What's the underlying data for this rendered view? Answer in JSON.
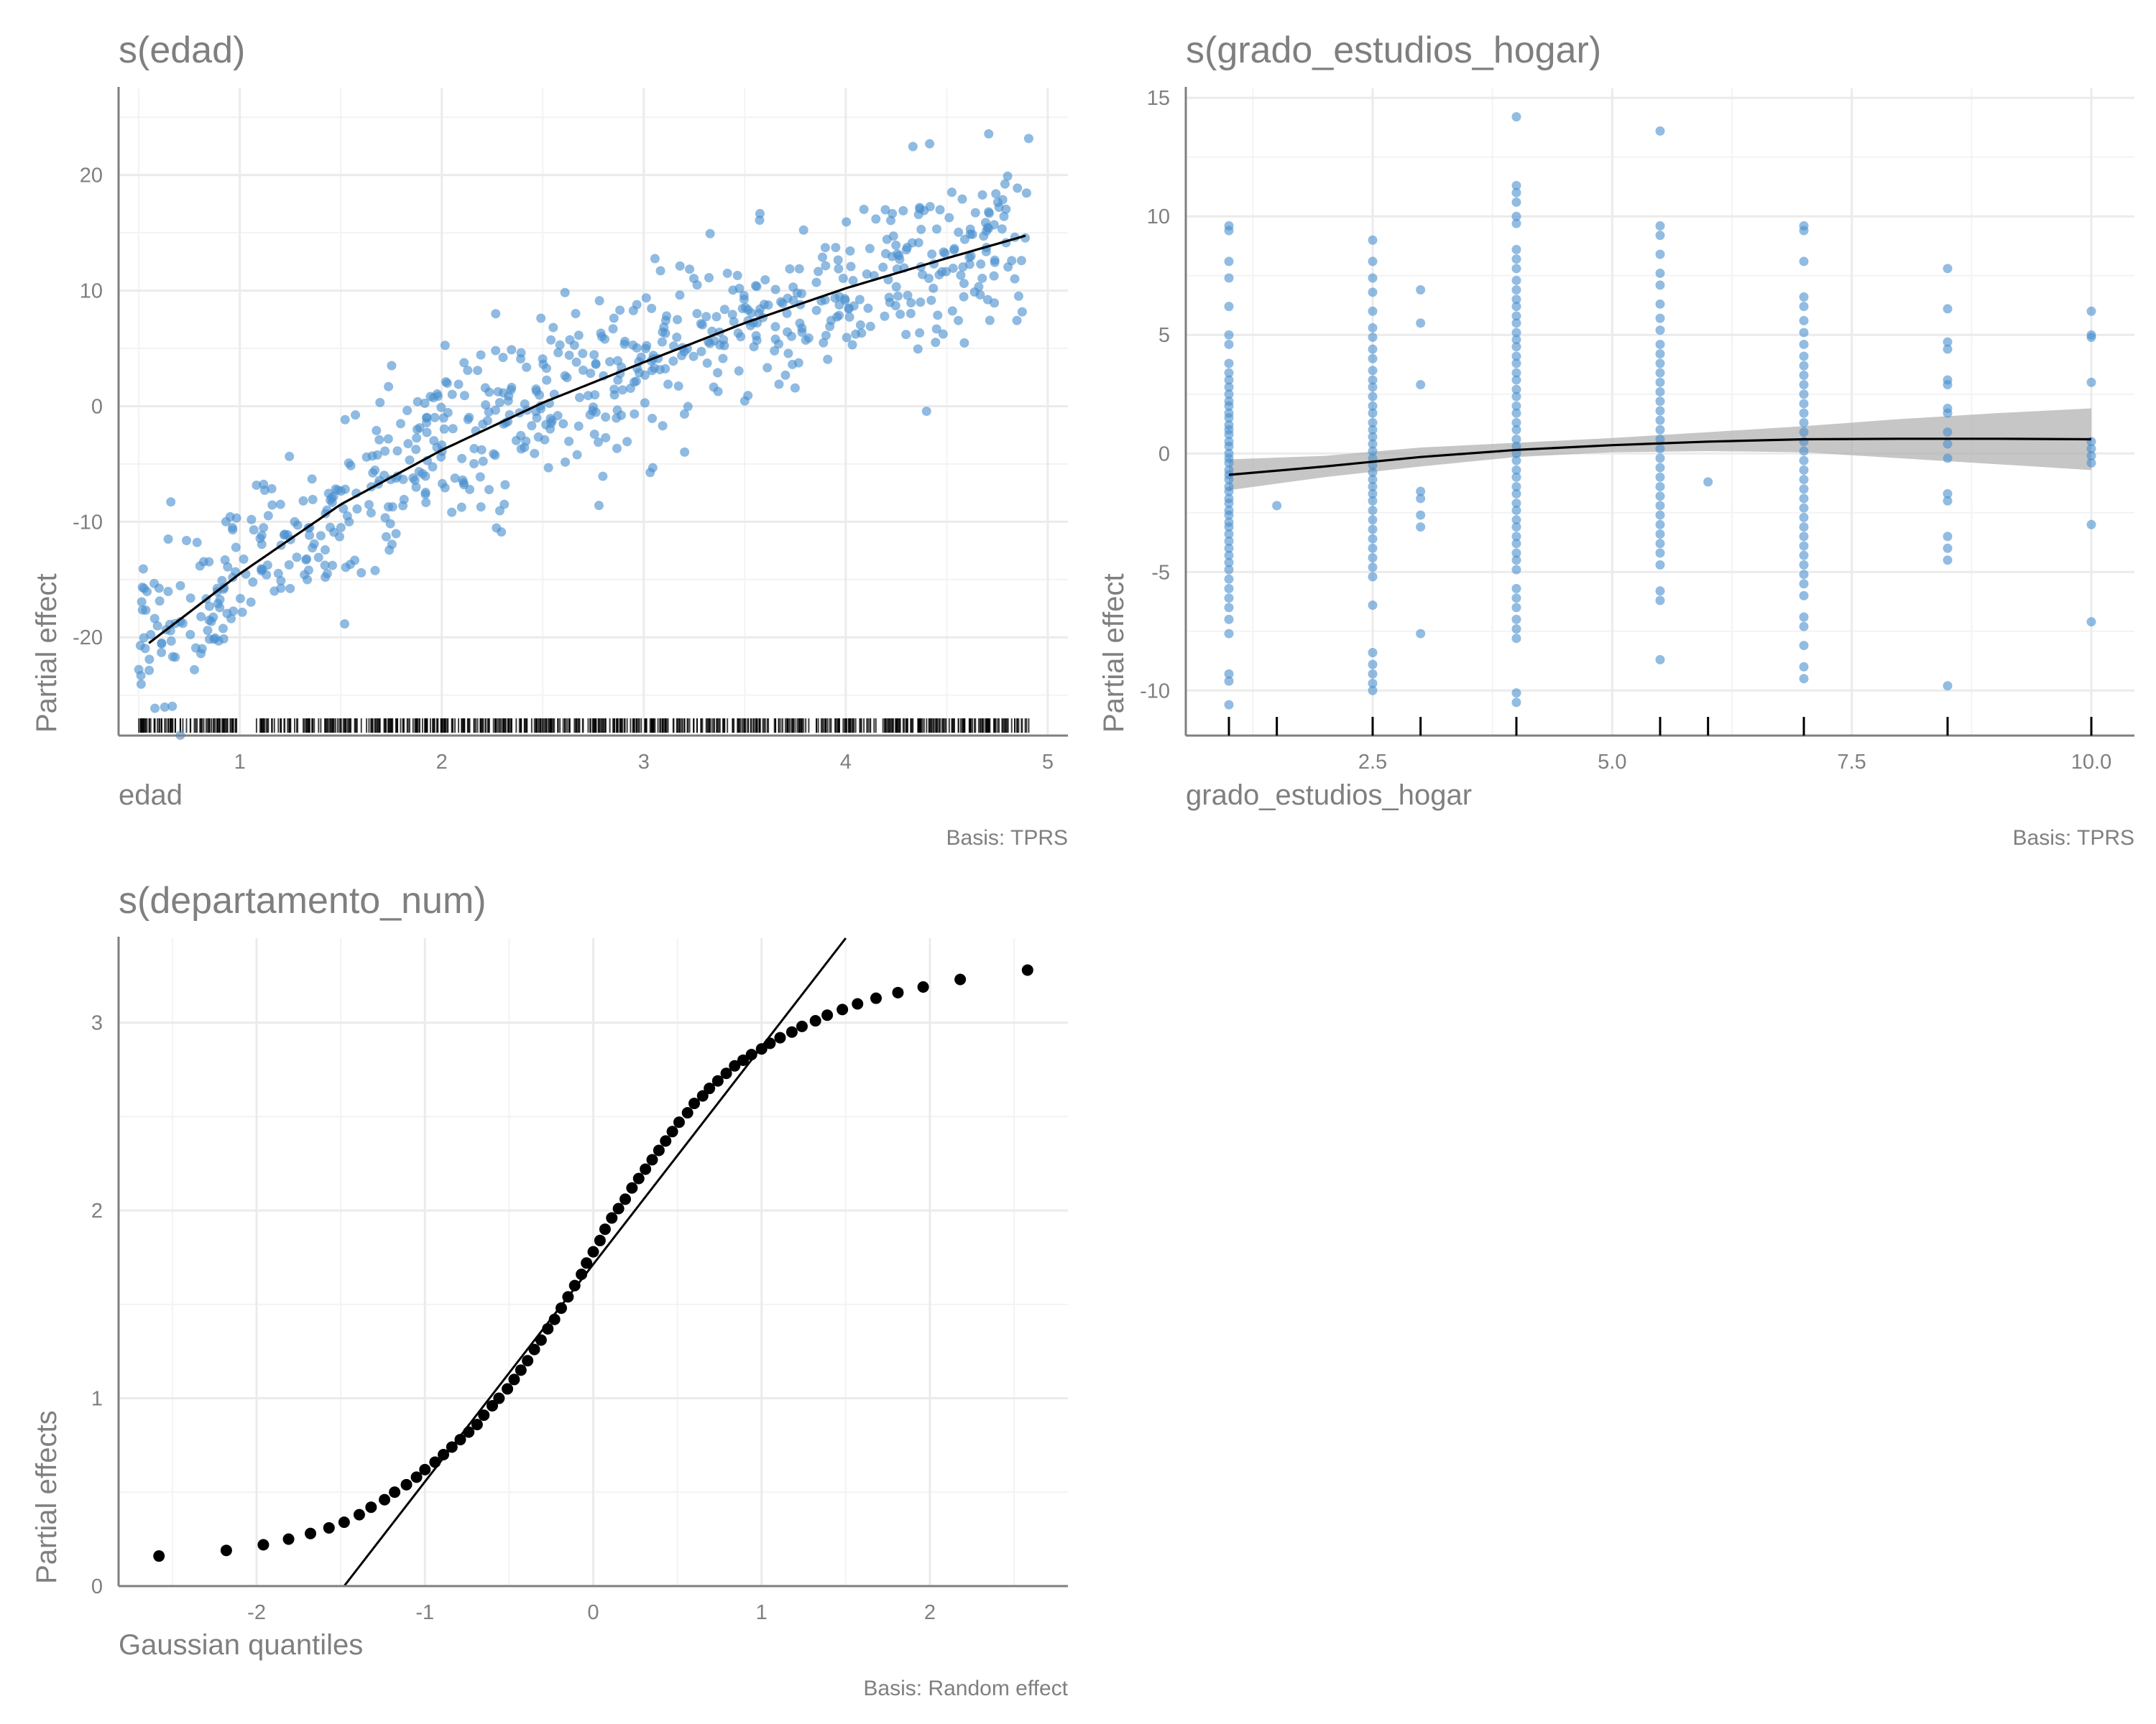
{
  "colors": {
    "points": "#4a8fce",
    "smooth": "#000000",
    "band": "#b3b3b3",
    "grid": "#ebebeb",
    "axis": "#7f7f7f",
    "text": "#7f7f7f"
  },
  "chart_data": [
    {
      "type": "scatter",
      "title": "s(edad)",
      "xlabel": "edad",
      "ylabel": "Partial effect",
      "caption": "Basis: TPRS",
      "xlim": [
        0.4,
        5.1
      ],
      "ylim": [
        -28.5,
        27.5
      ],
      "xticks": [
        1,
        2,
        3,
        4,
        5
      ],
      "yticks": [
        -20,
        -10,
        0,
        10,
        20
      ],
      "rug": true,
      "smooth": {
        "x": [
          0.55,
          1.0,
          1.5,
          2.0,
          2.5,
          3.0,
          3.5,
          4.0,
          4.5,
          4.9
        ],
        "y": [
          -20.5,
          -14.5,
          -8.5,
          -3.8,
          0.3,
          3.8,
          7.2,
          10.2,
          12.8,
          14.8
        ]
      },
      "points": {
        "x_range": [
          0.5,
          4.92
        ],
        "n": 720,
        "residual_sd": 3.8
      }
    },
    {
      "type": "scatter",
      "title": "s(grado_estudios_hogar)",
      "xlabel": "grado_estudios_hogar",
      "ylabel": "Partial effect",
      "caption": "Basis: TPRS",
      "xlim": [
        0.55,
        10.45
      ],
      "ylim": [
        -11.9,
        15.4
      ],
      "xticks": [
        2.5,
        5.0,
        7.5,
        10.0
      ],
      "xtick_labels": [
        "2.5",
        "5.0",
        "7.5",
        "10.0"
      ],
      "yticks": [
        -10,
        -5,
        0,
        5,
        10,
        15
      ],
      "rug_x": [
        1,
        1.5,
        2.5,
        3,
        4,
        5.5,
        6,
        7,
        8.5,
        10
      ],
      "smooth": {
        "x": [
          1,
          2,
          3,
          4,
          5,
          6,
          7,
          8,
          9,
          10
        ],
        "y": [
          -0.9,
          -0.55,
          -0.15,
          0.15,
          0.35,
          0.5,
          0.6,
          0.62,
          0.62,
          0.6
        ],
        "lower": [
          -1.55,
          -1.0,
          -0.55,
          -0.15,
          0.05,
          0.1,
          0.05,
          -0.2,
          -0.45,
          -0.7
        ],
        "upper": [
          -0.25,
          -0.1,
          0.25,
          0.45,
          0.65,
          0.9,
          1.15,
          1.45,
          1.7,
          1.9
        ]
      },
      "points": [
        {
          "x": 1,
          "values": [
            9.6,
            9.4,
            8.1,
            7.4,
            6.2,
            5.0,
            4.6,
            3.8,
            3.4,
            3.1,
            2.8,
            2.5,
            2.2,
            2.0,
            1.7,
            1.5,
            1.2,
            1.0,
            0.8,
            0.5,
            0.3,
            0.0,
            -0.2,
            -0.4,
            -0.7,
            -0.9,
            -1.1,
            -1.4,
            -1.6,
            -1.9,
            -2.1,
            -2.4,
            -2.6,
            -2.9,
            -3.1,
            -3.4,
            -3.7,
            -4.0,
            -4.3,
            -4.6,
            -4.9,
            -5.3,
            -5.7,
            -6.1,
            -6.5,
            -7.0,
            -7.6,
            -9.3,
            -9.6,
            -10.6
          ]
        },
        {
          "x": 1.5,
          "values": [
            -2.2
          ]
        },
        {
          "x": 2.5,
          "values": [
            9.0,
            8.1,
            7.4,
            6.8,
            6.0,
            5.3,
            4.9,
            4.4,
            4.0,
            3.5,
            3.1,
            2.8,
            2.4,
            2.0,
            1.7,
            1.3,
            1.0,
            0.7,
            0.4,
            0.1,
            -0.2,
            -0.5,
            -0.8,
            -1.1,
            -1.4,
            -1.7,
            -2.0,
            -2.4,
            -2.8,
            -3.2,
            -3.6,
            -4.0,
            -4.4,
            -4.8,
            -5.2,
            -6.4,
            -8.4,
            -8.9,
            -9.3,
            -9.7,
            -10.0
          ]
        },
        {
          "x": 3,
          "values": [
            6.9,
            5.5,
            2.9,
            -1.6,
            -1.9,
            -2.6,
            -3.1,
            -7.6
          ]
        },
        {
          "x": 4,
          "values": [
            14.2,
            11.3,
            11.0,
            10.6,
            10.0,
            9.7,
            8.6,
            8.2,
            7.8,
            7.3,
            6.9,
            6.5,
            6.2,
            5.8,
            5.5,
            5.1,
            4.8,
            4.5,
            4.1,
            3.8,
            3.4,
            3.1,
            2.7,
            2.4,
            2.0,
            1.7,
            1.3,
            1.0,
            0.6,
            0.3,
            0.0,
            -0.3,
            -0.7,
            -1.0,
            -1.4,
            -1.7,
            -2.1,
            -2.4,
            -2.8,
            -3.1,
            -3.5,
            -3.8,
            -4.2,
            -4.5,
            -4.9,
            -5.7,
            -6.1,
            -6.5,
            -7.0,
            -7.4,
            -7.8,
            -10.1,
            -10.5
          ]
        },
        {
          "x": 5.5,
          "values": [
            13.6,
            9.6,
            9.2,
            8.4,
            7.6,
            7.1,
            6.3,
            5.7,
            5.2,
            4.6,
            4.2,
            3.8,
            3.4,
            3.0,
            2.6,
            2.2,
            1.8,
            1.4,
            1.0,
            0.6,
            0.2,
            -0.2,
            -0.6,
            -1.0,
            -1.4,
            -1.8,
            -2.2,
            -2.6,
            -3.0,
            -3.4,
            -3.8,
            -4.2,
            -4.7,
            -5.8,
            -6.2,
            -8.7
          ]
        },
        {
          "x": 6,
          "values": [
            -1.2
          ]
        },
        {
          "x": 7,
          "values": [
            9.6,
            9.4,
            8.1,
            6.6,
            6.2,
            5.6,
            5.1,
            4.6,
            4.1,
            3.7,
            3.3,
            2.9,
            2.5,
            2.1,
            1.7,
            1.3,
            0.9,
            0.5,
            0.1,
            -0.3,
            -0.7,
            -1.1,
            -1.5,
            -1.9,
            -2.3,
            -2.7,
            -3.1,
            -3.5,
            -3.9,
            -4.3,
            -4.7,
            -5.1,
            -5.5,
            -6.0,
            -6.9,
            -7.3,
            -8.1,
            -9.0,
            -9.5
          ]
        },
        {
          "x": 8.5,
          "values": [
            7.8,
            6.1,
            4.7,
            4.4,
            3.1,
            2.9,
            1.9,
            1.7,
            0.9,
            0.4,
            -0.2,
            -1.7,
            -2.0,
            -3.5,
            -4.0,
            -4.5,
            -9.8
          ]
        },
        {
          "x": 10,
          "values": [
            6.0,
            5.0,
            4.9,
            3.0,
            0.5,
            0.2,
            -0.1,
            -0.4,
            -3.0,
            -7.1
          ]
        }
      ]
    },
    {
      "type": "scatter",
      "title": "s(departamento_num)",
      "xlabel": "Gaussian quantiles",
      "ylabel": "Partial effects",
      "caption": "Basis: Random effect",
      "xlim": [
        -2.82,
        2.82
      ],
      "ylim": [
        0.0,
        3.45
      ],
      "xticks": [
        -2,
        -1,
        0,
        1,
        2
      ],
      "yticks": [
        0,
        1,
        2,
        3
      ],
      "reference_line": {
        "x1": -1.48,
        "y1": 0.0,
        "x2": 1.5,
        "y2": 3.45
      },
      "points": [
        {
          "x": -2.58,
          "y": 0.16
        },
        {
          "x": -2.18,
          "y": 0.19
        },
        {
          "x": -1.96,
          "y": 0.22
        },
        {
          "x": -1.81,
          "y": 0.25
        },
        {
          "x": -1.68,
          "y": 0.28
        },
        {
          "x": -1.57,
          "y": 0.31
        },
        {
          "x": -1.48,
          "y": 0.34
        },
        {
          "x": -1.39,
          "y": 0.38
        },
        {
          "x": -1.32,
          "y": 0.42
        },
        {
          "x": -1.24,
          "y": 0.46
        },
        {
          "x": -1.18,
          "y": 0.5
        },
        {
          "x": -1.11,
          "y": 0.54
        },
        {
          "x": -1.05,
          "y": 0.58
        },
        {
          "x": -1.0,
          "y": 0.62
        },
        {
          "x": -0.94,
          "y": 0.66
        },
        {
          "x": -0.89,
          "y": 0.7
        },
        {
          "x": -0.84,
          "y": 0.74
        },
        {
          "x": -0.79,
          "y": 0.78
        },
        {
          "x": -0.74,
          "y": 0.82
        },
        {
          "x": -0.69,
          "y": 0.86
        },
        {
          "x": -0.65,
          "y": 0.91
        },
        {
          "x": -0.6,
          "y": 0.96
        },
        {
          "x": -0.56,
          "y": 1.0
        },
        {
          "x": -0.51,
          "y": 1.05
        },
        {
          "x": -0.47,
          "y": 1.1
        },
        {
          "x": -0.43,
          "y": 1.15
        },
        {
          "x": -0.39,
          "y": 1.2
        },
        {
          "x": -0.35,
          "y": 1.26
        },
        {
          "x": -0.31,
          "y": 1.31
        },
        {
          "x": -0.27,
          "y": 1.37
        },
        {
          "x": -0.23,
          "y": 1.42
        },
        {
          "x": -0.19,
          "y": 1.48
        },
        {
          "x": -0.15,
          "y": 1.54
        },
        {
          "x": -0.11,
          "y": 1.6
        },
        {
          "x": -0.07,
          "y": 1.66
        },
        {
          "x": -0.04,
          "y": 1.72
        },
        {
          "x": 0.0,
          "y": 1.78
        },
        {
          "x": 0.04,
          "y": 1.84
        },
        {
          "x": 0.07,
          "y": 1.9
        },
        {
          "x": 0.11,
          "y": 1.96
        },
        {
          "x": 0.15,
          "y": 2.01
        },
        {
          "x": 0.19,
          "y": 2.06
        },
        {
          "x": 0.23,
          "y": 2.12
        },
        {
          "x": 0.27,
          "y": 2.17
        },
        {
          "x": 0.31,
          "y": 2.22
        },
        {
          "x": 0.35,
          "y": 2.27
        },
        {
          "x": 0.39,
          "y": 2.32
        },
        {
          "x": 0.43,
          "y": 2.37
        },
        {
          "x": 0.47,
          "y": 2.42
        },
        {
          "x": 0.51,
          "y": 2.47
        },
        {
          "x": 0.56,
          "y": 2.52
        },
        {
          "x": 0.6,
          "y": 2.57
        },
        {
          "x": 0.65,
          "y": 2.61
        },
        {
          "x": 0.69,
          "y": 2.65
        },
        {
          "x": 0.74,
          "y": 2.69
        },
        {
          "x": 0.79,
          "y": 2.73
        },
        {
          "x": 0.84,
          "y": 2.77
        },
        {
          "x": 0.89,
          "y": 2.8
        },
        {
          "x": 0.94,
          "y": 2.83
        },
        {
          "x": 1.0,
          "y": 2.86
        },
        {
          "x": 1.05,
          "y": 2.89
        },
        {
          "x": 1.11,
          "y": 2.92
        },
        {
          "x": 1.18,
          "y": 2.95
        },
        {
          "x": 1.24,
          "y": 2.98
        },
        {
          "x": 1.32,
          "y": 3.01
        },
        {
          "x": 1.39,
          "y": 3.04
        },
        {
          "x": 1.48,
          "y": 3.07
        },
        {
          "x": 1.57,
          "y": 3.1
        },
        {
          "x": 1.68,
          "y": 3.13
        },
        {
          "x": 1.81,
          "y": 3.16
        },
        {
          "x": 1.96,
          "y": 3.19
        },
        {
          "x": 2.18,
          "y": 3.23
        },
        {
          "x": 2.58,
          "y": 3.28
        }
      ]
    }
  ]
}
